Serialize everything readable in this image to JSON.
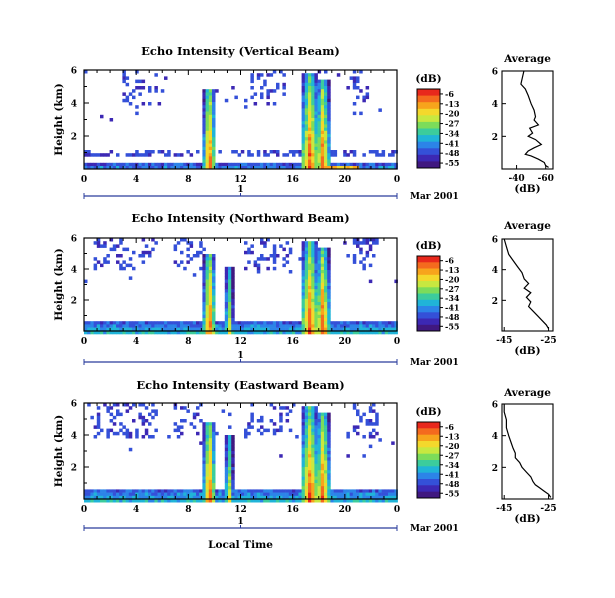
{
  "xlabel": "Local Time",
  "date_label": "Mar 2001",
  "day_label": "1",
  "colorbar": {
    "unit": "(dB)",
    "ticks": [
      "-6",
      "-13",
      "-20",
      "-27",
      "-34",
      "-41",
      "-48",
      "-55"
    ],
    "colors": [
      "#e8281c",
      "#f46a1e",
      "#f7a41c",
      "#f4d82c",
      "#c8e840",
      "#7cdc5a",
      "#3ccc9c",
      "#20b4d8",
      "#2c84e8",
      "#3450d8",
      "#3c28b4",
      "#401880"
    ]
  },
  "chart_data": [
    {
      "type": "heatmap",
      "title": "Echo Intensity (Vertical Beam)",
      "ylabel": "Height (km)",
      "xticks": [
        "0",
        "4",
        "8",
        "12",
        "16",
        "20",
        "0"
      ],
      "yticks": [
        "6",
        "4",
        "2"
      ],
      "xlim": [
        0,
        24
      ],
      "ylim": [
        0,
        6
      ],
      "value_unit": "dB",
      "value_range": [
        -55,
        -6
      ],
      "average": {
        "title": "Average",
        "xlabel": "(dB)",
        "xticks": [
          "-40",
          "-60"
        ],
        "yticks": [
          "6",
          "4",
          "2"
        ],
        "xlim": [
          -30,
          -65
        ],
        "ylim": [
          0,
          6
        ],
        "profile": [
          [
            -45,
            6.0
          ],
          [
            -44,
            5.6
          ],
          [
            -43,
            5.2
          ],
          [
            -46,
            4.9
          ],
          [
            -48,
            4.5
          ],
          [
            -50,
            4.0
          ],
          [
            -52,
            3.6
          ],
          [
            -53,
            3.2
          ],
          [
            -52,
            3.0
          ],
          [
            -55,
            2.7
          ],
          [
            -49,
            2.5
          ],
          [
            -51,
            2.2
          ],
          [
            -48,
            2.0
          ],
          [
            -53,
            1.8
          ],
          [
            -57,
            1.5
          ],
          [
            -52,
            1.3
          ],
          [
            -48,
            1.1
          ],
          [
            -46,
            0.9
          ],
          [
            -50,
            0.8
          ],
          [
            -55,
            0.6
          ],
          [
            -59,
            0.4
          ],
          [
            -60,
            0.2
          ],
          [
            -62,
            0.1
          ]
        ]
      }
    },
    {
      "type": "heatmap",
      "title": "Echo Intensity (Northward Beam)",
      "ylabel": "Height (km)",
      "xticks": [
        "0",
        "4",
        "8",
        "12",
        "16",
        "20",
        "0"
      ],
      "yticks": [
        "6",
        "4",
        "2"
      ],
      "xlim": [
        0,
        24
      ],
      "ylim": [
        0,
        6
      ],
      "value_unit": "dB",
      "value_range": [
        -55,
        -6
      ],
      "average": {
        "title": "Average",
        "xlabel": "(dB)",
        "xticks": [
          "-45",
          "-25"
        ],
        "yticks": [
          "6",
          "4",
          "2"
        ],
        "xlim": [
          -46,
          -23
        ],
        "ylim": [
          0,
          6
        ],
        "profile": [
          [
            -45,
            6.0
          ],
          [
            -44,
            5.5
          ],
          [
            -43,
            5.0
          ],
          [
            -41,
            4.6
          ],
          [
            -39,
            4.2
          ],
          [
            -37,
            3.8
          ],
          [
            -36,
            3.4
          ],
          [
            -34,
            3.1
          ],
          [
            -36,
            2.8
          ],
          [
            -33,
            2.5
          ],
          [
            -35,
            2.2
          ],
          [
            -33,
            1.9
          ],
          [
            -34,
            1.6
          ],
          [
            -32,
            1.3
          ],
          [
            -30,
            1.0
          ],
          [
            -28,
            0.7
          ],
          [
            -26,
            0.4
          ],
          [
            -25,
            0.15
          ]
        ]
      }
    },
    {
      "type": "heatmap",
      "title": "Echo Intensity (Eastward Beam)",
      "ylabel": "Height (km)",
      "xticks": [
        "0",
        "4",
        "8",
        "12",
        "16",
        "20",
        "0"
      ],
      "yticks": [
        "6",
        "4",
        "2"
      ],
      "xlim": [
        0,
        24
      ],
      "ylim": [
        0,
        6
      ],
      "value_unit": "dB",
      "value_range": [
        -55,
        -6
      ],
      "average": {
        "title": "Average",
        "xlabel": "(dB)",
        "xticks": [
          "-45",
          "-25"
        ],
        "yticks": [
          "6",
          "4",
          "2"
        ],
        "xlim": [
          -46,
          -23
        ],
        "ylim": [
          0,
          6
        ],
        "profile": [
          [
            -45,
            6.0
          ],
          [
            -45,
            5.5
          ],
          [
            -44,
            5.0
          ],
          [
            -44,
            4.5
          ],
          [
            -43,
            4.0
          ],
          [
            -42,
            3.6
          ],
          [
            -41,
            3.2
          ],
          [
            -40,
            2.9
          ],
          [
            -40,
            2.6
          ],
          [
            -38,
            2.3
          ],
          [
            -37,
            2.0
          ],
          [
            -35,
            1.7
          ],
          [
            -33,
            1.4
          ],
          [
            -32,
            1.1
          ],
          [
            -31,
            0.9
          ],
          [
            -29,
            0.7
          ],
          [
            -27,
            0.5
          ],
          [
            -25,
            0.3
          ],
          [
            -24,
            0.1
          ]
        ]
      }
    }
  ]
}
